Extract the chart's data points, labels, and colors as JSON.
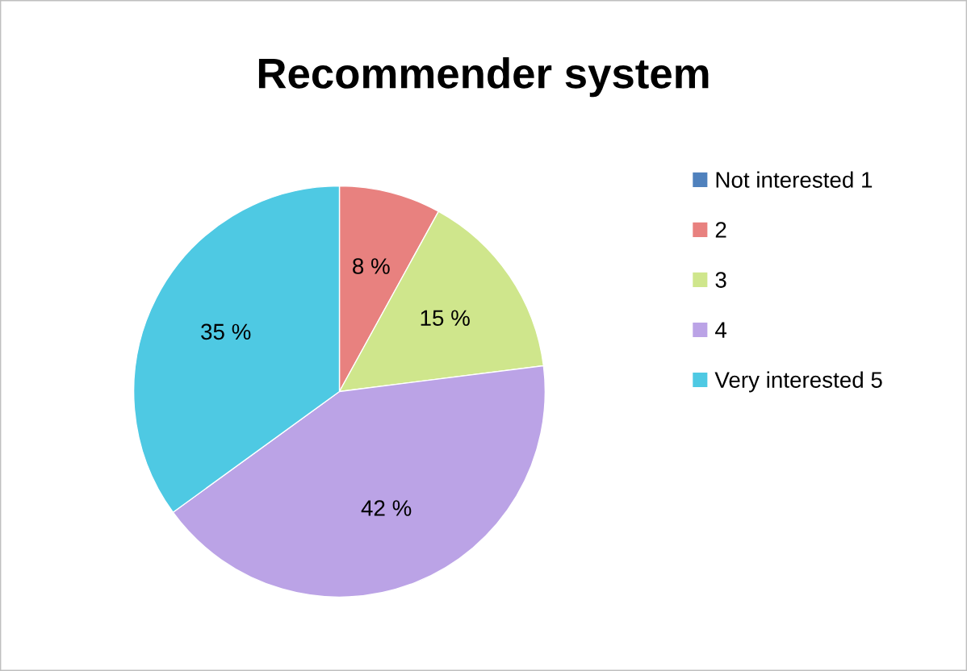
{
  "chart_data": {
    "type": "pie",
    "title": "Recommender system",
    "categories": [
      "Not interested 1",
      "2",
      "3",
      "4",
      "Very interested 5"
    ],
    "values": [
      0,
      8,
      15,
      42,
      35
    ],
    "colors": [
      "#4f81bd",
      "#e8817f",
      "#cfe68c",
      "#bba3e6",
      "#4ec9e3"
    ],
    "value_labels": [
      null,
      "8 %",
      "15 %",
      "42 %",
      "35 %"
    ],
    "legend": "right"
  }
}
